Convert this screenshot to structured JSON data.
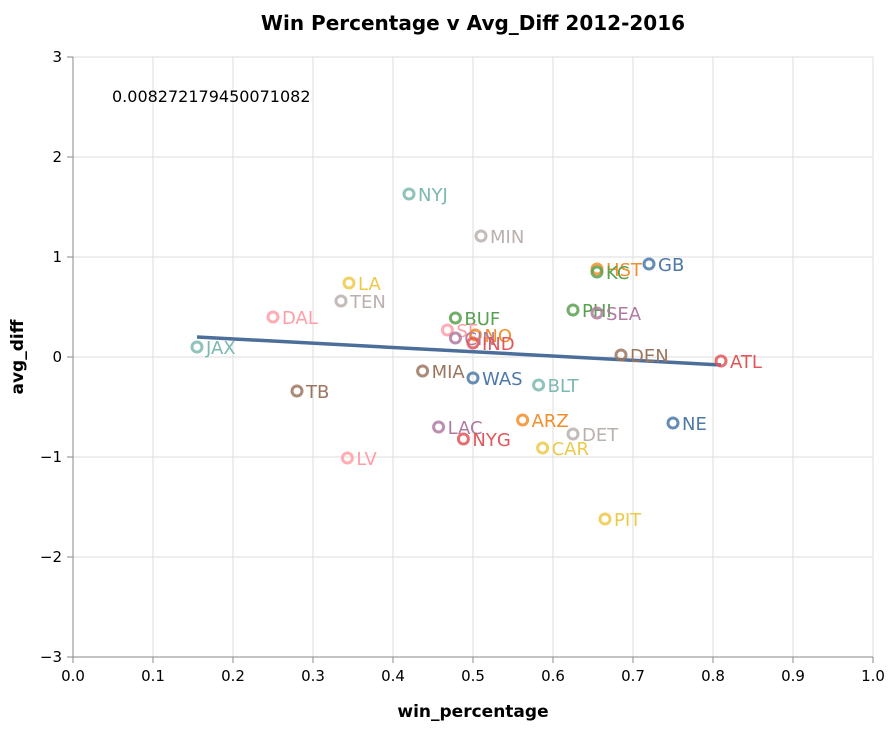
{
  "chart_data": {
    "type": "scatter",
    "title": "Win Percentage v Avg_Diff 2012-2016",
    "xlabel": "win_percentage",
    "ylabel": "avg_diff",
    "xlim": [
      0.0,
      1.0
    ],
    "ylim": [
      -3,
      3
    ],
    "xticks": [
      "0.0",
      "0.1",
      "0.2",
      "0.3",
      "0.4",
      "0.5",
      "0.6",
      "0.7",
      "0.8",
      "0.9",
      "1.0"
    ],
    "yticks": [
      "−3",
      "−2",
      "−1",
      "0",
      "1",
      "2",
      "3"
    ],
    "grid": true,
    "annotation": "0.008272179450071082",
    "trendline": {
      "x": [
        0.155,
        0.81
      ],
      "y": [
        0.2,
        -0.08
      ],
      "color": "#4c6e9b"
    },
    "points": [
      {
        "label": "NYJ",
        "x": 0.42,
        "y": 1.63,
        "color": "#7cb8b0"
      },
      {
        "label": "MIN",
        "x": 0.51,
        "y": 1.21,
        "color": "#bab0ac"
      },
      {
        "label": "HST",
        "x": 0.655,
        "y": 0.88,
        "color": "#f28e2c"
      },
      {
        "label": "GB",
        "x": 0.72,
        "y": 0.93,
        "color": "#4e79a7"
      },
      {
        "label": "KC",
        "x": 0.655,
        "y": 0.85,
        "color": "#59a14f"
      },
      {
        "label": "LA",
        "x": 0.345,
        "y": 0.74,
        "color": "#edc949"
      },
      {
        "label": "TEN",
        "x": 0.335,
        "y": 0.56,
        "color": "#bab0ac"
      },
      {
        "label": "PHI",
        "x": 0.625,
        "y": 0.47,
        "color": "#59a14f"
      },
      {
        "label": "SEA",
        "x": 0.655,
        "y": 0.44,
        "color": "#b07aa1"
      },
      {
        "label": "DAL",
        "x": 0.25,
        "y": 0.4,
        "color": "#ff9da7"
      },
      {
        "label": "BUF",
        "x": 0.478,
        "y": 0.39,
        "color": "#59a14f"
      },
      {
        "label": "SF",
        "x": 0.468,
        "y": 0.27,
        "color": "#ff9da7"
      },
      {
        "label": "NO",
        "x": 0.503,
        "y": 0.22,
        "color": "#f28e2c"
      },
      {
        "label": "CIN",
        "x": 0.478,
        "y": 0.19,
        "color": "#b07aa1"
      },
      {
        "label": "IND",
        "x": 0.5,
        "y": 0.14,
        "color": "#e15759"
      },
      {
        "label": "JAX",
        "x": 0.155,
        "y": 0.1,
        "color": "#7cb8b0"
      },
      {
        "label": "DEN",
        "x": 0.685,
        "y": 0.02,
        "color": "#9c755f"
      },
      {
        "label": "ATL",
        "x": 0.81,
        "y": -0.04,
        "color": "#e15759"
      },
      {
        "label": "MIA",
        "x": 0.437,
        "y": -0.14,
        "color": "#9c755f"
      },
      {
        "label": "WAS",
        "x": 0.5,
        "y": -0.21,
        "color": "#4e79a7"
      },
      {
        "label": "BLT",
        "x": 0.582,
        "y": -0.28,
        "color": "#7cb8b0"
      },
      {
        "label": "TB",
        "x": 0.28,
        "y": -0.34,
        "color": "#9c755f"
      },
      {
        "label": "ARZ",
        "x": 0.562,
        "y": -0.63,
        "color": "#f28e2c"
      },
      {
        "label": "NE",
        "x": 0.75,
        "y": -0.66,
        "color": "#4e79a7"
      },
      {
        "label": "LAC",
        "x": 0.457,
        "y": -0.7,
        "color": "#b07aa1"
      },
      {
        "label": "DET",
        "x": 0.625,
        "y": -0.77,
        "color": "#bab0ac"
      },
      {
        "label": "NYG",
        "x": 0.488,
        "y": -0.82,
        "color": "#e15759"
      },
      {
        "label": "CAR",
        "x": 0.587,
        "y": -0.91,
        "color": "#edc949"
      },
      {
        "label": "LV",
        "x": 0.343,
        "y": -1.01,
        "color": "#ff9da7"
      },
      {
        "label": "PIT",
        "x": 0.665,
        "y": -1.62,
        "color": "#edc949"
      }
    ]
  }
}
